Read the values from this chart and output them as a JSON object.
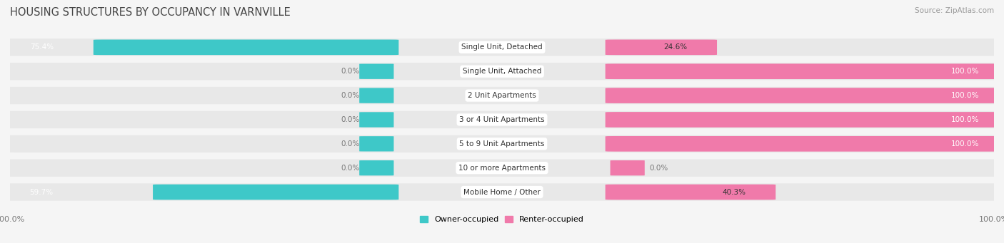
{
  "title": "HOUSING STRUCTURES BY OCCUPANCY IN VARNVILLE",
  "source": "Source: ZipAtlas.com",
  "categories": [
    "Single Unit, Detached",
    "Single Unit, Attached",
    "2 Unit Apartments",
    "3 or 4 Unit Apartments",
    "5 to 9 Unit Apartments",
    "10 or more Apartments",
    "Mobile Home / Other"
  ],
  "owner_pct": [
    75.4,
    0.0,
    0.0,
    0.0,
    0.0,
    0.0,
    59.7
  ],
  "renter_pct": [
    24.6,
    100.0,
    100.0,
    100.0,
    100.0,
    0.0,
    40.3
  ],
  "owner_color": "#3ec8c8",
  "renter_color": "#f07aaa",
  "row_bg_color": "#e8e8e8",
  "page_bg_color": "#f5f5f5",
  "bar_height": 0.62,
  "title_fontsize": 10.5,
  "label_fontsize": 7.5,
  "tick_fontsize": 8,
  "source_fontsize": 7.5,
  "legend_fontsize": 8
}
